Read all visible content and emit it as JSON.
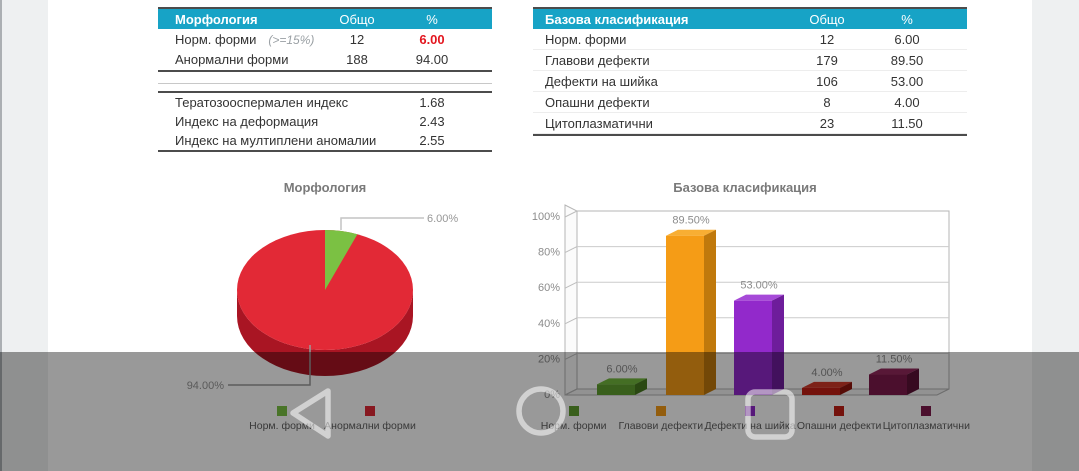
{
  "colors": {
    "header_bg": "#17a3c6",
    "alert_red": "#e3161f",
    "pie_side": "#a91523",
    "bars": {
      "top": [
        "#72b83d",
        "#f8ae33",
        "#a64ad8",
        "#d13928",
        "#93295d"
      ],
      "side": [
        "#47781f",
        "#c0790c",
        "#6e1d9b",
        "#8f150c",
        "#5c1136"
      ]
    }
  },
  "tables": {
    "morphology": {
      "title": "Морфология",
      "col_total": "Общо",
      "col_percent": "%",
      "rows": [
        {
          "label": "Норм. форми",
          "note": "(>=15%)",
          "total": "12",
          "percent": "6.00"
        },
        {
          "label": "Анормални форми",
          "note": "",
          "total": "188",
          "percent": "94.00"
        }
      ],
      "indices": [
        {
          "label": "Тератозооспермален индекс",
          "value": "1.68"
        },
        {
          "label": "Индекс на деформация",
          "value": "2.43"
        },
        {
          "label": "Индекс на мултиплени аномалии",
          "value": "2.55"
        }
      ]
    },
    "classification": {
      "title": "Базова класификация",
      "col_total": "Общо",
      "col_percent": "%",
      "rows": [
        {
          "label": "Норм. форми",
          "total": "12",
          "percent": "6.00"
        },
        {
          "label": "Главови дефекти",
          "total": "179",
          "percent": "89.50"
        },
        {
          "label": "Дефекти на шийка",
          "total": "106",
          "percent": "53.00"
        },
        {
          "label": "Опашни дефекти",
          "total": "8",
          "percent": "4.00"
        },
        {
          "label": "Цитоплазматични",
          "total": "23",
          "percent": "11.50"
        }
      ]
    }
  },
  "chart_data": [
    {
      "type": "pie",
      "style": "3d",
      "title": "Морфология",
      "labels": [
        "Норм. форми",
        "Анормални форми"
      ],
      "values": [
        6.0,
        94.0
      ],
      "data_labels": [
        "6.00%",
        "94.00%"
      ],
      "colors": [
        "#7bc143",
        "#e22936"
      ],
      "legend_position": "bottom"
    },
    {
      "type": "bar",
      "style": "3d",
      "title": "Базова класификация",
      "categories": [
        "Норм. форми",
        "Главови дефекти",
        "Дефекти на шийка",
        "Опашни дефекти",
        "Цитоплазматични"
      ],
      "values": [
        6.0,
        89.5,
        53.0,
        4.0,
        11.5
      ],
      "data_labels": [
        "6.00%",
        "89.50%",
        "53.00%",
        "4.00%",
        "11.50%"
      ],
      "colors": [
        "#5f9e2f",
        "#f59c16",
        "#9229cb",
        "#c21f14",
        "#7e1a4b"
      ],
      "ylim": [
        0,
        100
      ],
      "yticks": [
        "0%",
        "20%",
        "40%",
        "60%",
        "80%",
        "100%"
      ],
      "grid": true,
      "legend_position": "bottom"
    }
  ],
  "nav": {
    "back": "back",
    "home": "home",
    "recents": "recents"
  }
}
